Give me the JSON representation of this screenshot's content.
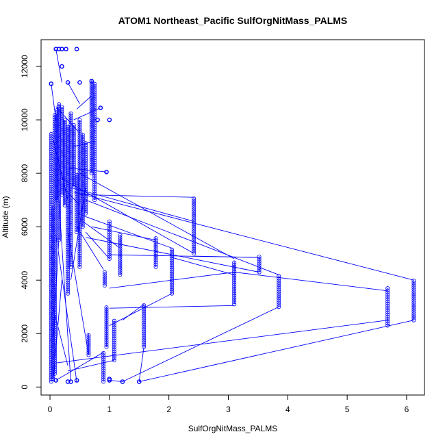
{
  "chart_data": {
    "type": "scatter",
    "title": "ATOM1 Northeast_Pacific SulfOrgNitMass_PALMS",
    "xlabel": "SulfOrgNitMass_PALMS",
    "ylabel": "Altitude (m)",
    "xlim": [
      -0.15,
      6.3
    ],
    "ylim": [
      -300,
      13000
    ],
    "x_ticks": [
      0,
      1,
      2,
      3,
      4,
      5,
      6
    ],
    "x_tick_labels": [
      "0",
      "1",
      "2",
      "3",
      "4",
      "5",
      "6"
    ],
    "y_ticks": [
      0,
      2000,
      4000,
      6000,
      8000,
      10000,
      12000
    ],
    "y_tick_labels": [
      "0",
      "2000",
      "4000",
      "6000",
      "8000",
      "10000",
      "12000"
    ],
    "grid": false,
    "marker": "open-circle",
    "color": "#0000ff",
    "series_connected": true,
    "columns": [
      {
        "x": 0.02,
        "y_from": 200,
        "y_to": 9500
      },
      {
        "x": 0.05,
        "y_from": 300,
        "y_to": 6700
      },
      {
        "x": 0.08,
        "y_from": 500,
        "y_to": 10200
      },
      {
        "x": 0.12,
        "y_from": 7000,
        "y_to": 10400
      },
      {
        "x": 0.15,
        "y_from": 5500,
        "y_to": 10600
      },
      {
        "x": 0.2,
        "y_from": 7200,
        "y_to": 10500
      },
      {
        "x": 0.25,
        "y_from": 6800,
        "y_to": 10000
      },
      {
        "x": 0.3,
        "y_from": 3500,
        "y_to": 9800
      },
      {
        "x": 0.35,
        "y_from": 4500,
        "y_to": 10300
      },
      {
        "x": 0.4,
        "y_from": 7500,
        "y_to": 9800
      },
      {
        "x": 0.45,
        "y_from": 5800,
        "y_to": 8000
      },
      {
        "x": 0.5,
        "y_from": 4500,
        "y_to": 10000
      },
      {
        "x": 0.55,
        "y_from": 6000,
        "y_to": 9500
      },
      {
        "x": 0.6,
        "y_from": 6500,
        "y_to": 9200
      },
      {
        "x": 0.65,
        "y_from": 1200,
        "y_to": 2000
      },
      {
        "x": 0.7,
        "y_from": 8000,
        "y_to": 11500
      },
      {
        "x": 0.75,
        "y_from": 7000,
        "y_to": 11400
      },
      {
        "x": 0.9,
        "y_from": 200,
        "y_to": 1300
      },
      {
        "x": 0.92,
        "y_from": 3800,
        "y_to": 4300
      },
      {
        "x": 0.95,
        "y_from": 1500,
        "y_to": 3000
      },
      {
        "x": 1.0,
        "y_from": 4800,
        "y_to": 6200
      },
      {
        "x": 1.08,
        "y_from": 1000,
        "y_to": 2500
      },
      {
        "x": 1.18,
        "y_from": 4200,
        "y_to": 5700
      },
      {
        "x": 1.58,
        "y_from": 1500,
        "y_to": 3100
      },
      {
        "x": 1.78,
        "y_from": 4500,
        "y_to": 5600
      },
      {
        "x": 2.05,
        "y_from": 3500,
        "y_to": 5200
      },
      {
        "x": 2.42,
        "y_from": 5000,
        "y_to": 7100
      },
      {
        "x": 3.1,
        "y_from": 3100,
        "y_to": 4700
      },
      {
        "x": 3.52,
        "y_from": 4300,
        "y_to": 4900
      },
      {
        "x": 3.85,
        "y_from": 3000,
        "y_to": 4200
      },
      {
        "x": 5.68,
        "y_from": 2300,
        "y_to": 3700
      },
      {
        "x": 6.12,
        "y_from": 2500,
        "y_to": 4000
      }
    ],
    "points": [
      {
        "x": 0.1,
        "y": 12650
      },
      {
        "x": 0.15,
        "y": 12650
      },
      {
        "x": 0.2,
        "y": 12650
      },
      {
        "x": 0.27,
        "y": 12650
      },
      {
        "x": 0.45,
        "y": 12650
      },
      {
        "x": 0.02,
        "y": 11350
      },
      {
        "x": 0.3,
        "y": 11400
      },
      {
        "x": 0.5,
        "y": 11400
      },
      {
        "x": 0.7,
        "y": 11450
      },
      {
        "x": 0.2,
        "y": 12000
      },
      {
        "x": 0.85,
        "y": 10450
      },
      {
        "x": 1.0,
        "y": 10000
      },
      {
        "x": 0.8,
        "y": 10000
      },
      {
        "x": 0.95,
        "y": 8050
      },
      {
        "x": 1.0,
        "y": 300
      },
      {
        "x": 1.0,
        "y": 250
      },
      {
        "x": 1.22,
        "y": 200
      },
      {
        "x": 1.5,
        "y": 200
      },
      {
        "x": 0.3,
        "y": 200
      },
      {
        "x": 0.35,
        "y": 200
      },
      {
        "x": 0.1,
        "y": 250
      },
      {
        "x": 0.45,
        "y": 250
      }
    ],
    "segments": [
      [
        0.02,
        11350,
        0.1,
        10000
      ],
      [
        0.1,
        12650,
        0.2,
        11400
      ],
      [
        0.3,
        11400,
        0.5,
        10600
      ],
      [
        0.7,
        10900,
        0.45,
        10400
      ],
      [
        0.85,
        10450,
        0.4,
        10000
      ],
      [
        0.95,
        8050,
        0.3,
        8200
      ],
      [
        0.75,
        9200,
        0.4,
        9000
      ],
      [
        0.5,
        7200,
        2.42,
        7100
      ],
      [
        0.3,
        7500,
        2.42,
        6200
      ],
      [
        0.2,
        7800,
        2.42,
        5000
      ],
      [
        0.5,
        8000,
        3.1,
        4800
      ],
      [
        0.4,
        7300,
        6.12,
        4000
      ],
      [
        0.6,
        7000,
        3.85,
        4200
      ],
      [
        0.45,
        6500,
        2.05,
        5200
      ],
      [
        0.7,
        6000,
        1.78,
        5500
      ],
      [
        0.6,
        5800,
        1.0,
        4800
      ],
      [
        0.55,
        6200,
        1.18,
        5200
      ],
      [
        0.6,
        5600,
        3.52,
        4300
      ],
      [
        1.0,
        4950,
        3.52,
        4850
      ],
      [
        2.42,
        4900,
        3.52,
        4850
      ],
      [
        2.05,
        4850,
        3.1,
        4200
      ],
      [
        1.0,
        3700,
        3.1,
        4300
      ],
      [
        3.1,
        4300,
        5.68,
        3600
      ],
      [
        1.0,
        2950,
        3.1,
        3050
      ],
      [
        1.0,
        2300,
        2.05,
        3500
      ],
      [
        0.1,
        900,
        5.68,
        2500
      ],
      [
        1.5,
        200,
        6.12,
        2500
      ],
      [
        1.22,
        200,
        3.85,
        3000
      ],
      [
        1.58,
        3100,
        1.22,
        2500
      ],
      [
        1.58,
        1500,
        1.5,
        200
      ],
      [
        0.3,
        600,
        1.08,
        1000
      ],
      [
        0.1,
        250,
        0.9,
        1300
      ],
      [
        0.45,
        6000,
        0.9,
        4400
      ],
      [
        0.1,
        5700,
        0.45,
        200
      ],
      [
        0.15,
        7000,
        0.35,
        200
      ],
      [
        0.05,
        3000,
        0.3,
        800
      ],
      [
        0.6,
        7500,
        0.35,
        4000
      ],
      [
        0.2,
        4000,
        0.05,
        200
      ],
      [
        0.15,
        5600,
        0.05,
        1600
      ],
      [
        0.5,
        6800,
        0.25,
        7400
      ],
      [
        0.3,
        5800,
        0.65,
        1200
      ],
      [
        1.0,
        250,
        1.22,
        200
      ],
      [
        0.05,
        9300,
        0.3,
        7000
      ],
      [
        0.1,
        10500,
        0.5,
        9500
      ]
    ]
  }
}
